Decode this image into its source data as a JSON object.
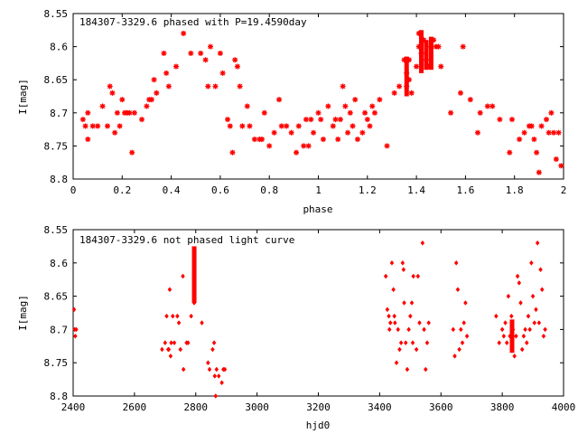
{
  "chart_data": [
    {
      "type": "scatter",
      "title": "184307-3329.6 phased with P=19.4590day",
      "xlabel": "phase",
      "ylabel": "I[mag]",
      "xlim": [
        0,
        2
      ],
      "ylim": [
        8.55,
        8.8
      ],
      "y_inverted": true,
      "xticks": [
        "0",
        "0.2",
        "0.4",
        "0.6",
        "0.8",
        "1",
        "1.2",
        "1.4",
        "1.6",
        "1.8",
        "2"
      ],
      "yticks": [
        "8.55",
        "8.6",
        "8.65",
        "8.7",
        "8.75",
        "8.8"
      ],
      "grid": false,
      "marker": "star",
      "color": "#ff0000",
      "points": [
        [
          0.04,
          8.71
        ],
        [
          0.05,
          8.72
        ],
        [
          0.06,
          8.7
        ],
        [
          0.06,
          8.74
        ],
        [
          0.08,
          8.72
        ],
        [
          0.1,
          8.72
        ],
        [
          0.12,
          8.69
        ],
        [
          0.14,
          8.72
        ],
        [
          0.15,
          8.66
        ],
        [
          0.16,
          8.67
        ],
        [
          0.17,
          8.73
        ],
        [
          0.18,
          8.7
        ],
        [
          0.19,
          8.72
        ],
        [
          0.2,
          8.68
        ],
        [
          0.21,
          8.7
        ],
        [
          0.22,
          8.7
        ],
        [
          0.23,
          8.7
        ],
        [
          0.24,
          8.76
        ],
        [
          0.25,
          8.7
        ],
        [
          0.28,
          8.71
        ],
        [
          0.3,
          8.69
        ],
        [
          0.31,
          8.68
        ],
        [
          0.32,
          8.68
        ],
        [
          0.33,
          8.65
        ],
        [
          0.34,
          8.67
        ],
        [
          0.37,
          8.61
        ],
        [
          0.38,
          8.64
        ],
        [
          0.39,
          8.66
        ],
        [
          0.42,
          8.63
        ],
        [
          0.45,
          8.58
        ],
        [
          0.48,
          8.61
        ],
        [
          0.52,
          8.61
        ],
        [
          0.54,
          8.62
        ],
        [
          0.55,
          8.66
        ],
        [
          0.56,
          8.6
        ],
        [
          0.58,
          8.66
        ],
        [
          0.6,
          8.61
        ],
        [
          0.61,
          8.64
        ],
        [
          0.63,
          8.71
        ],
        [
          0.64,
          8.72
        ],
        [
          0.65,
          8.76
        ],
        [
          0.66,
          8.62
        ],
        [
          0.67,
          8.63
        ],
        [
          0.68,
          8.66
        ],
        [
          0.69,
          8.72
        ],
        [
          0.71,
          8.69
        ],
        [
          0.72,
          8.72
        ],
        [
          0.74,
          8.74
        ],
        [
          0.76,
          8.74
        ],
        [
          0.77,
          8.74
        ],
        [
          0.78,
          8.7
        ],
        [
          0.8,
          8.75
        ],
        [
          0.82,
          8.73
        ],
        [
          0.84,
          8.68
        ],
        [
          0.85,
          8.72
        ],
        [
          0.87,
          8.72
        ],
        [
          0.89,
          8.73
        ],
        [
          0.91,
          8.76
        ],
        [
          0.92,
          8.72
        ],
        [
          0.94,
          8.75
        ],
        [
          0.95,
          8.71
        ],
        [
          0.96,
          8.75
        ],
        [
          0.97,
          8.71
        ],
        [
          0.98,
          8.73
        ],
        [
          1.0,
          8.7
        ],
        [
          1.01,
          8.71
        ],
        [
          1.02,
          8.74
        ],
        [
          1.04,
          8.69
        ],
        [
          1.06,
          8.72
        ],
        [
          1.07,
          8.71
        ],
        [
          1.08,
          8.74
        ],
        [
          1.09,
          8.71
        ],
        [
          1.1,
          8.66
        ],
        [
          1.11,
          8.69
        ],
        [
          1.12,
          8.73
        ],
        [
          1.13,
          8.7
        ],
        [
          1.14,
          8.72
        ],
        [
          1.15,
          8.68
        ],
        [
          1.16,
          8.74
        ],
        [
          1.18,
          8.73
        ],
        [
          1.19,
          8.7
        ],
        [
          1.2,
          8.71
        ],
        [
          1.21,
          8.72
        ],
        [
          1.22,
          8.69
        ],
        [
          1.23,
          8.7
        ],
        [
          1.25,
          8.68
        ],
        [
          1.28,
          8.75
        ],
        [
          1.31,
          8.67
        ],
        [
          1.33,
          8.66
        ],
        [
          1.35,
          8.62
        ],
        [
          1.36,
          8.64
        ],
        [
          1.36,
          8.66
        ],
        [
          1.37,
          8.62
        ],
        [
          1.37,
          8.65
        ],
        [
          1.38,
          8.67
        ],
        [
          1.4,
          8.63
        ],
        [
          1.41,
          8.6
        ],
        [
          1.41,
          8.58
        ],
        [
          1.42,
          8.61
        ],
        [
          1.43,
          8.59
        ],
        [
          1.44,
          8.62
        ],
        [
          1.45,
          8.63
        ],
        [
          1.46,
          8.6
        ],
        [
          1.47,
          8.59
        ],
        [
          1.48,
          8.6
        ],
        [
          1.49,
          8.6
        ],
        [
          1.5,
          8.63
        ],
        [
          1.54,
          8.7
        ],
        [
          1.58,
          8.67
        ],
        [
          1.59,
          8.6
        ],
        [
          1.62,
          8.68
        ],
        [
          1.65,
          8.73
        ],
        [
          1.66,
          8.7
        ],
        [
          1.69,
          8.69
        ],
        [
          1.71,
          8.69
        ],
        [
          1.74,
          8.71
        ],
        [
          1.78,
          8.76
        ],
        [
          1.79,
          8.71
        ],
        [
          1.82,
          8.74
        ],
        [
          1.84,
          8.73
        ],
        [
          1.86,
          8.72
        ],
        [
          1.87,
          8.72
        ],
        [
          1.88,
          8.74
        ],
        [
          1.89,
          8.76
        ],
        [
          1.9,
          8.79
        ],
        [
          1.91,
          8.72
        ],
        [
          1.93,
          8.71
        ],
        [
          1.94,
          8.73
        ],
        [
          1.95,
          8.7
        ],
        [
          1.96,
          8.73
        ],
        [
          1.97,
          8.77
        ],
        [
          1.98,
          8.73
        ],
        [
          1.99,
          8.78
        ]
      ],
      "dense_segments": [
        {
          "x": 1.36,
          "y_from": 8.615,
          "y_to": 8.675
        },
        {
          "x": 1.42,
          "y_from": 8.575,
          "y_to": 8.64
        },
        {
          "x": 1.44,
          "y_from": 8.59,
          "y_to": 8.635
        },
        {
          "x": 1.46,
          "y_from": 8.585,
          "y_to": 8.635
        }
      ]
    },
    {
      "type": "scatter",
      "title": "184307-3329.6 not phased light curve",
      "xlabel": "hjd0",
      "ylabel": "I[mag]",
      "xlim": [
        2400,
        4000
      ],
      "ylim": [
        8.55,
        8.8
      ],
      "y_inverted": true,
      "xticks": [
        "2400",
        "2600",
        "2800",
        "3000",
        "3200",
        "3400",
        "3600",
        "3800",
        "4000"
      ],
      "yticks": [
        "8.55",
        "8.6",
        "8.65",
        "8.7",
        "8.75",
        "8.8"
      ],
      "grid": false,
      "marker": "diamond",
      "color": "#ff0000",
      "points": [
        [
          2403,
          8.67
        ],
        [
          2405,
          8.7
        ],
        [
          2407,
          8.71
        ],
        [
          2410,
          8.7
        ],
        [
          2690,
          8.73
        ],
        [
          2700,
          8.72
        ],
        [
          2705,
          8.68
        ],
        [
          2710,
          8.73
        ],
        [
          2712,
          8.73
        ],
        [
          2715,
          8.64
        ],
        [
          2718,
          8.74
        ],
        [
          2720,
          8.72
        ],
        [
          2725,
          8.68
        ],
        [
          2730,
          8.72
        ],
        [
          2740,
          8.68
        ],
        [
          2745,
          8.69
        ],
        [
          2750,
          8.73
        ],
        [
          2758,
          8.62
        ],
        [
          2760,
          8.76
        ],
        [
          2770,
          8.72
        ],
        [
          2775,
          8.72
        ],
        [
          2785,
          8.68
        ],
        [
          2795,
          8.58
        ],
        [
          2795,
          8.6
        ],
        [
          2795,
          8.62
        ],
        [
          2795,
          8.64
        ],
        [
          2795,
          8.66
        ],
        [
          2820,
          8.69
        ],
        [
          2840,
          8.75
        ],
        [
          2845,
          8.76
        ],
        [
          2855,
          8.73
        ],
        [
          2860,
          8.72
        ],
        [
          2862,
          8.77
        ],
        [
          2865,
          8.8
        ],
        [
          2868,
          8.76
        ],
        [
          2875,
          8.77
        ],
        [
          2885,
          8.78
        ],
        [
          2890,
          8.76
        ],
        [
          2895,
          8.76
        ],
        [
          3420,
          8.62
        ],
        [
          3425,
          8.67
        ],
        [
          3430,
          8.68
        ],
        [
          3432,
          8.7
        ],
        [
          3435,
          8.69
        ],
        [
          3440,
          8.6
        ],
        [
          3445,
          8.64
        ],
        [
          3448,
          8.68
        ],
        [
          3450,
          8.69
        ],
        [
          3455,
          8.75
        ],
        [
          3460,
          8.7
        ],
        [
          3465,
          8.73
        ],
        [
          3470,
          8.72
        ],
        [
          3475,
          8.6
        ],
        [
          3478,
          8.61
        ],
        [
          3480,
          8.66
        ],
        [
          3485,
          8.72
        ],
        [
          3490,
          8.76
        ],
        [
          3495,
          8.7
        ],
        [
          3500,
          8.68
        ],
        [
          3505,
          8.66
        ],
        [
          3508,
          8.72
        ],
        [
          3510,
          8.62
        ],
        [
          3520,
          8.73
        ],
        [
          3525,
          8.62
        ],
        [
          3530,
          8.69
        ],
        [
          3540,
          8.57
        ],
        [
          3545,
          8.7
        ],
        [
          3550,
          8.76
        ],
        [
          3555,
          8.72
        ],
        [
          3560,
          8.69
        ],
        [
          3640,
          8.7
        ],
        [
          3645,
          8.74
        ],
        [
          3650,
          8.6
        ],
        [
          3655,
          8.64
        ],
        [
          3660,
          8.73
        ],
        [
          3665,
          8.7
        ],
        [
          3670,
          8.72
        ],
        [
          3675,
          8.69
        ],
        [
          3680,
          8.66
        ],
        [
          3685,
          8.71
        ],
        [
          3780,
          8.68
        ],
        [
          3790,
          8.72
        ],
        [
          3800,
          8.7
        ],
        [
          3805,
          8.71
        ],
        [
          3810,
          8.69
        ],
        [
          3815,
          8.72
        ],
        [
          3820,
          8.65
        ],
        [
          3825,
          8.71
        ],
        [
          3830,
          8.68
        ],
        [
          3835,
          8.7
        ],
        [
          3840,
          8.74
        ],
        [
          3845,
          8.71
        ],
        [
          3850,
          8.62
        ],
        [
          3855,
          8.63
        ],
        [
          3860,
          8.66
        ],
        [
          3865,
          8.73
        ],
        [
          3870,
          8.71
        ],
        [
          3875,
          8.7
        ],
        [
          3880,
          8.72
        ],
        [
          3885,
          8.68
        ],
        [
          3890,
          8.7
        ],
        [
          3895,
          8.6
        ],
        [
          3900,
          8.65
        ],
        [
          3905,
          8.69
        ],
        [
          3910,
          8.67
        ],
        [
          3915,
          8.57
        ],
        [
          3920,
          8.69
        ],
        [
          3925,
          8.61
        ],
        [
          3930,
          8.64
        ],
        [
          3935,
          8.71
        ],
        [
          3940,
          8.7
        ]
      ],
      "dense_segments": [
        {
          "x": 2795,
          "y_from": 8.575,
          "y_to": 8.66
        },
        {
          "x": 3832,
          "y_from": 8.685,
          "y_to": 8.735
        }
      ]
    }
  ]
}
